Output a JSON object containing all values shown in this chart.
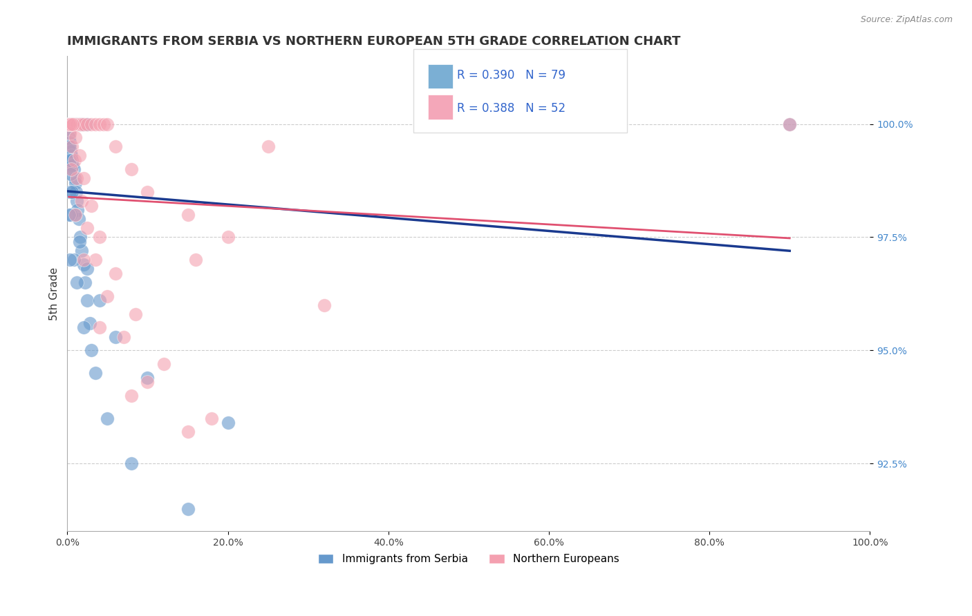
{
  "title": "IMMIGRANTS FROM SERBIA VS NORTHERN EUROPEAN 5TH GRADE CORRELATION CHART",
  "source": "Source: ZipAtlas.com",
  "ylabel": "5th Grade",
  "ytick_labels": [
    "100.0%",
    "97.5%",
    "95.0%",
    "92.5%"
  ],
  "xlim": [
    0.0,
    1.0
  ],
  "ylim": [
    91.0,
    101.5
  ],
  "legend_r1": "R = 0.390",
  "legend_n1": "N = 79",
  "legend_r2": "R = 0.388",
  "legend_n2": "N = 52",
  "legend_color1": "#7BAFD4",
  "legend_color2": "#F4A7B9",
  "blue_color": "#6699CC",
  "pink_color": "#F4A0B0",
  "trend_blue": "#1a3a8f",
  "trend_pink": "#e05070",
  "serbia_x": [
    0.002,
    0.003,
    0.003,
    0.005,
    0.006,
    0.008,
    0.01,
    0.012,
    0.015,
    0.018,
    0.02,
    0.025,
    0.002,
    0.002,
    0.003,
    0.003,
    0.004,
    0.005,
    0.006,
    0.007,
    0.008,
    0.009,
    0.01,
    0.011,
    0.012,
    0.013,
    0.014,
    0.016,
    0.018,
    0.02,
    0.022,
    0.025,
    0.028,
    0.03,
    0.001,
    0.001,
    0.002,
    0.002,
    0.003,
    0.003,
    0.004,
    0.004,
    0.005,
    0.005,
    0.006,
    0.006,
    0.007,
    0.008,
    0.009,
    0.01,
    0.011,
    0.012,
    0.015,
    0.018,
    0.002,
    0.003,
    0.005,
    0.008,
    0.012,
    0.02,
    0.035,
    0.05,
    0.08,
    0.15,
    0.002,
    0.003,
    0.004,
    0.006,
    0.009,
    0.015,
    0.025,
    0.04,
    0.06,
    0.1,
    0.2,
    0.5,
    0.9,
    0.002,
    0.003
  ],
  "serbia_y": [
    100.0,
    100.0,
    100.0,
    100.0,
    100.0,
    100.0,
    100.0,
    100.0,
    100.0,
    100.0,
    100.0,
    100.0,
    99.8,
    99.7,
    99.6,
    99.5,
    99.4,
    99.3,
    99.2,
    99.1,
    99.0,
    98.8,
    98.7,
    98.5,
    98.3,
    98.1,
    97.9,
    97.5,
    97.2,
    96.9,
    96.5,
    96.1,
    95.6,
    95.0,
    100.0,
    100.0,
    100.0,
    100.0,
    100.0,
    100.0,
    100.0,
    100.0,
    100.0,
    100.0,
    100.0,
    100.0,
    100.0,
    100.0,
    100.0,
    100.0,
    100.0,
    100.0,
    100.0,
    100.0,
    99.0,
    98.5,
    98.0,
    97.0,
    96.5,
    95.5,
    94.5,
    93.5,
    92.5,
    91.5,
    99.5,
    99.2,
    98.9,
    98.5,
    98.0,
    97.4,
    96.8,
    96.1,
    95.3,
    94.4,
    93.4,
    100.0,
    100.0,
    98.0,
    97.0
  ],
  "northern_x": [
    0.002,
    0.005,
    0.008,
    0.01,
    0.012,
    0.015,
    0.018,
    0.02,
    0.025,
    0.03,
    0.035,
    0.04,
    0.045,
    0.05,
    0.06,
    0.08,
    0.1,
    0.15,
    0.2,
    0.003,
    0.006,
    0.009,
    0.012,
    0.018,
    0.025,
    0.035,
    0.05,
    0.07,
    0.1,
    0.15,
    0.002,
    0.004,
    0.007,
    0.01,
    0.015,
    0.02,
    0.03,
    0.04,
    0.06,
    0.085,
    0.12,
    0.18,
    0.25,
    0.6,
    0.9,
    0.005,
    0.01,
    0.02,
    0.04,
    0.08,
    0.16,
    0.32
  ],
  "northern_y": [
    100.0,
    100.0,
    100.0,
    100.0,
    100.0,
    100.0,
    100.0,
    100.0,
    100.0,
    100.0,
    100.0,
    100.0,
    100.0,
    100.0,
    99.5,
    99.0,
    98.5,
    98.0,
    97.5,
    99.8,
    99.5,
    99.2,
    98.8,
    98.3,
    97.7,
    97.0,
    96.2,
    95.3,
    94.3,
    93.2,
    100.0,
    100.0,
    100.0,
    99.7,
    99.3,
    98.8,
    98.2,
    97.5,
    96.7,
    95.8,
    94.7,
    93.5,
    99.5,
    100.0,
    100.0,
    99.0,
    98.0,
    97.0,
    95.5,
    94.0,
    97.0,
    96.0
  ]
}
